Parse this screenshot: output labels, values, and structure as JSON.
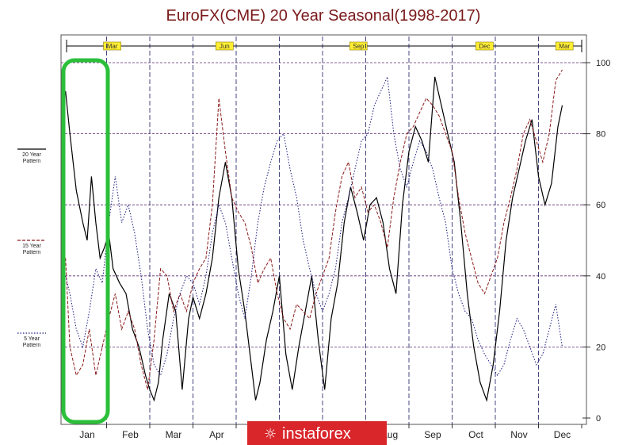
{
  "chart_data": {
    "type": "line",
    "title": "EuroFX(CME) 20 Year Seasonal(1998-2017)",
    "months": [
      "Jan",
      "Feb",
      "Mar",
      "Apr",
      "May",
      "Jun",
      "Jul",
      "Aug",
      "Sep",
      "Oct",
      "Nov",
      "Dec"
    ],
    "quarter_labels": [
      "Mar",
      "Jun",
      "Sep",
      "Dec",
      "Mar"
    ],
    "y_ticks": [
      0,
      20,
      40,
      60,
      80,
      100
    ],
    "ylim": [
      0,
      100
    ],
    "grid": true,
    "legend_position": "left",
    "legend": [
      {
        "line1": "20 Year",
        "line2": "Pattern",
        "color": "#000000",
        "style": "solid"
      },
      {
        "line1": "15 Year",
        "line2": "Pattern",
        "color": "#8b1a1a",
        "style": "dashed"
      },
      {
        "line1": "5 Year",
        "line2": "Pattern",
        "color": "#1a1a80",
        "style": "dotted"
      }
    ],
    "series": [
      {
        "name": "20 Year Pattern",
        "color": "#000000",
        "style": "solid",
        "x": [
          0.05,
          0.15,
          0.3,
          0.45,
          0.55,
          0.65,
          0.75,
          0.85,
          0.95,
          1.05,
          1.15,
          1.3,
          1.45,
          1.6,
          1.75,
          1.9,
          2.0,
          2.1,
          2.2,
          2.3,
          2.45,
          2.6,
          2.75,
          2.9,
          3.0,
          3.15,
          3.3,
          3.45,
          3.6,
          3.75,
          3.9,
          4.05,
          4.2,
          4.35,
          4.45,
          4.55,
          4.7,
          4.85,
          5.0,
          5.15,
          5.3,
          5.45,
          5.6,
          5.75,
          5.9,
          6.05,
          6.2,
          6.35,
          6.5,
          6.65,
          6.8,
          6.95,
          7.1,
          7.25,
          7.4,
          7.55,
          7.7,
          7.85,
          8.0,
          8.15,
          8.3,
          8.45,
          8.6,
          8.75,
          8.9,
          9.05,
          9.2,
          9.35,
          9.5,
          9.65,
          9.8,
          9.95,
          10.1,
          10.25,
          10.4,
          10.55,
          10.7,
          10.85,
          11.0,
          11.15,
          11.3,
          11.45,
          11.55
        ],
        "values": [
          92,
          80,
          64,
          55,
          50,
          68,
          55,
          45,
          48,
          52,
          42,
          38,
          35,
          25,
          20,
          12,
          8,
          5,
          10,
          22,
          35,
          30,
          8,
          28,
          34,
          28,
          35,
          45,
          62,
          72,
          62,
          42,
          30,
          15,
          5,
          10,
          22,
          30,
          40,
          18,
          8,
          20,
          30,
          40,
          22,
          8,
          28,
          38,
          55,
          65,
          58,
          50,
          60,
          62,
          55,
          42,
          35,
          60,
          75,
          82,
          78,
          72,
          96,
          88,
          80,
          72,
          55,
          35,
          20,
          10,
          5,
          15,
          30,
          50,
          62,
          70,
          78,
          84,
          68,
          60,
          66,
          82,
          88
        ]
      },
      {
        "name": "15 Year Pattern",
        "color": "#8b1a1a",
        "style": "dashed",
        "x": [
          0.05,
          0.15,
          0.3,
          0.45,
          0.6,
          0.75,
          0.9,
          1.05,
          1.2,
          1.35,
          1.5,
          1.65,
          1.8,
          1.95,
          2.1,
          2.25,
          2.4,
          2.55,
          2.7,
          2.85,
          3.0,
          3.15,
          3.3,
          3.45,
          3.6,
          3.75,
          3.9,
          4.05,
          4.2,
          4.35,
          4.5,
          4.65,
          4.8,
          4.95,
          5.1,
          5.25,
          5.4,
          5.55,
          5.7,
          5.85,
          6.0,
          6.15,
          6.3,
          6.45,
          6.6,
          6.75,
          6.9,
          7.05,
          7.2,
          7.35,
          7.5,
          7.65,
          7.8,
          7.95,
          8.1,
          8.25,
          8.4,
          8.55,
          8.7,
          8.85,
          9.0,
          9.15,
          9.3,
          9.45,
          9.6,
          9.75,
          9.9,
          10.05,
          10.2,
          10.35,
          10.5,
          10.65,
          10.8,
          10.95,
          11.1,
          11.25,
          11.4,
          11.55
        ],
        "values": [
          45,
          20,
          12,
          15,
          25,
          12,
          20,
          28,
          35,
          25,
          30,
          25,
          15,
          8,
          22,
          42,
          40,
          30,
          35,
          30,
          38,
          42,
          45,
          60,
          90,
          75,
          62,
          58,
          55,
          48,
          38,
          42,
          45,
          35,
          28,
          25,
          32,
          30,
          28,
          35,
          40,
          45,
          58,
          68,
          72,
          62,
          65,
          58,
          60,
          55,
          48,
          62,
          72,
          80,
          82,
          86,
          90,
          88,
          85,
          80,
          75,
          62,
          52,
          45,
          38,
          35,
          40,
          45,
          55,
          62,
          70,
          80,
          84,
          78,
          72,
          80,
          95,
          98
        ]
      },
      {
        "name": "5 Year Pattern",
        "color": "#1a1a80",
        "style": "dotted",
        "x": [
          0.05,
          0.15,
          0.3,
          0.45,
          0.6,
          0.75,
          0.9,
          1.05,
          1.2,
          1.35,
          1.5,
          1.65,
          1.8,
          1.95,
          2.1,
          2.25,
          2.4,
          2.55,
          2.7,
          2.85,
          3.0,
          3.15,
          3.3,
          3.45,
          3.6,
          3.75,
          3.9,
          4.05,
          4.2,
          4.35,
          4.5,
          4.65,
          4.8,
          4.95,
          5.1,
          5.25,
          5.4,
          5.55,
          5.7,
          5.85,
          6.0,
          6.15,
          6.3,
          6.45,
          6.6,
          6.75,
          6.9,
          7.05,
          7.2,
          7.35,
          7.5,
          7.65,
          7.8,
          7.95,
          8.1,
          8.25,
          8.4,
          8.55,
          8.7,
          8.85,
          9.0,
          9.15,
          9.3,
          9.45,
          9.6,
          9.75,
          9.9,
          10.05,
          10.2,
          10.35,
          10.5,
          10.65,
          10.8,
          10.95,
          11.1,
          11.25,
          11.4,
          11.55
        ],
        "values": [
          40,
          35,
          25,
          20,
          30,
          42,
          38,
          55,
          68,
          55,
          60,
          52,
          40,
          25,
          15,
          12,
          18,
          28,
          35,
          40,
          38,
          32,
          40,
          52,
          60,
          55,
          45,
          35,
          28,
          40,
          55,
          65,
          72,
          78,
          80,
          70,
          62,
          50,
          42,
          35,
          30,
          35,
          42,
          55,
          62,
          70,
          78,
          80,
          88,
          92,
          96,
          80,
          70,
          65,
          72,
          78,
          75,
          70,
          62,
          55,
          42,
          35,
          30,
          28,
          22,
          18,
          15,
          12,
          15,
          22,
          28,
          25,
          20,
          15,
          18,
          25,
          32,
          20
        ]
      }
    ]
  },
  "watermark": {
    "text": "instaforex",
    "color": "#d9262b"
  }
}
